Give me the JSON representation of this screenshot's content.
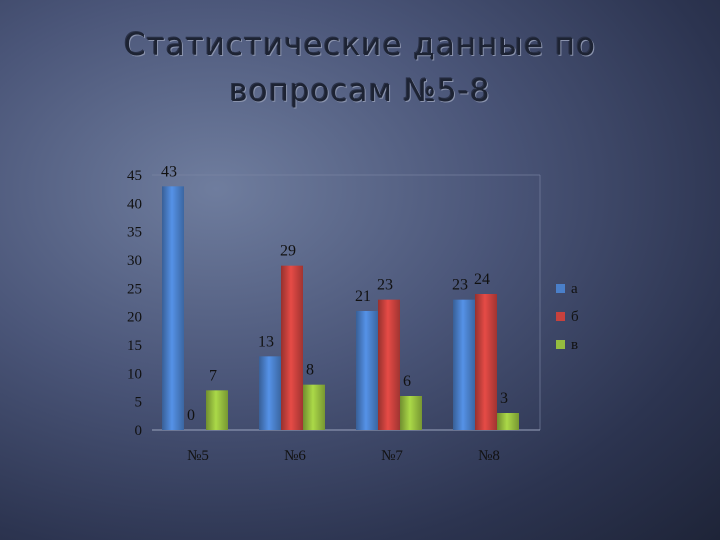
{
  "title": "Статистические данные по вопросам №5-8",
  "chart_data": {
    "type": "bar",
    "categories": [
      "№5",
      "№6",
      "№7",
      "№8"
    ],
    "series": [
      {
        "name": "а",
        "values": [
          43,
          13,
          21,
          23
        ],
        "color": "#4a7fc9"
      },
      {
        "name": "б",
        "values": [
          0,
          29,
          23,
          24
        ],
        "color": "#c8413d"
      },
      {
        "name": "в",
        "values": [
          7,
          8,
          6,
          3
        ],
        "color": "#95bd3f"
      }
    ],
    "ylim": [
      0,
      45
    ],
    "yticks": [
      0,
      5,
      10,
      15,
      20,
      25,
      30,
      35,
      40,
      45
    ],
    "grid": false,
    "legend": "right"
  }
}
